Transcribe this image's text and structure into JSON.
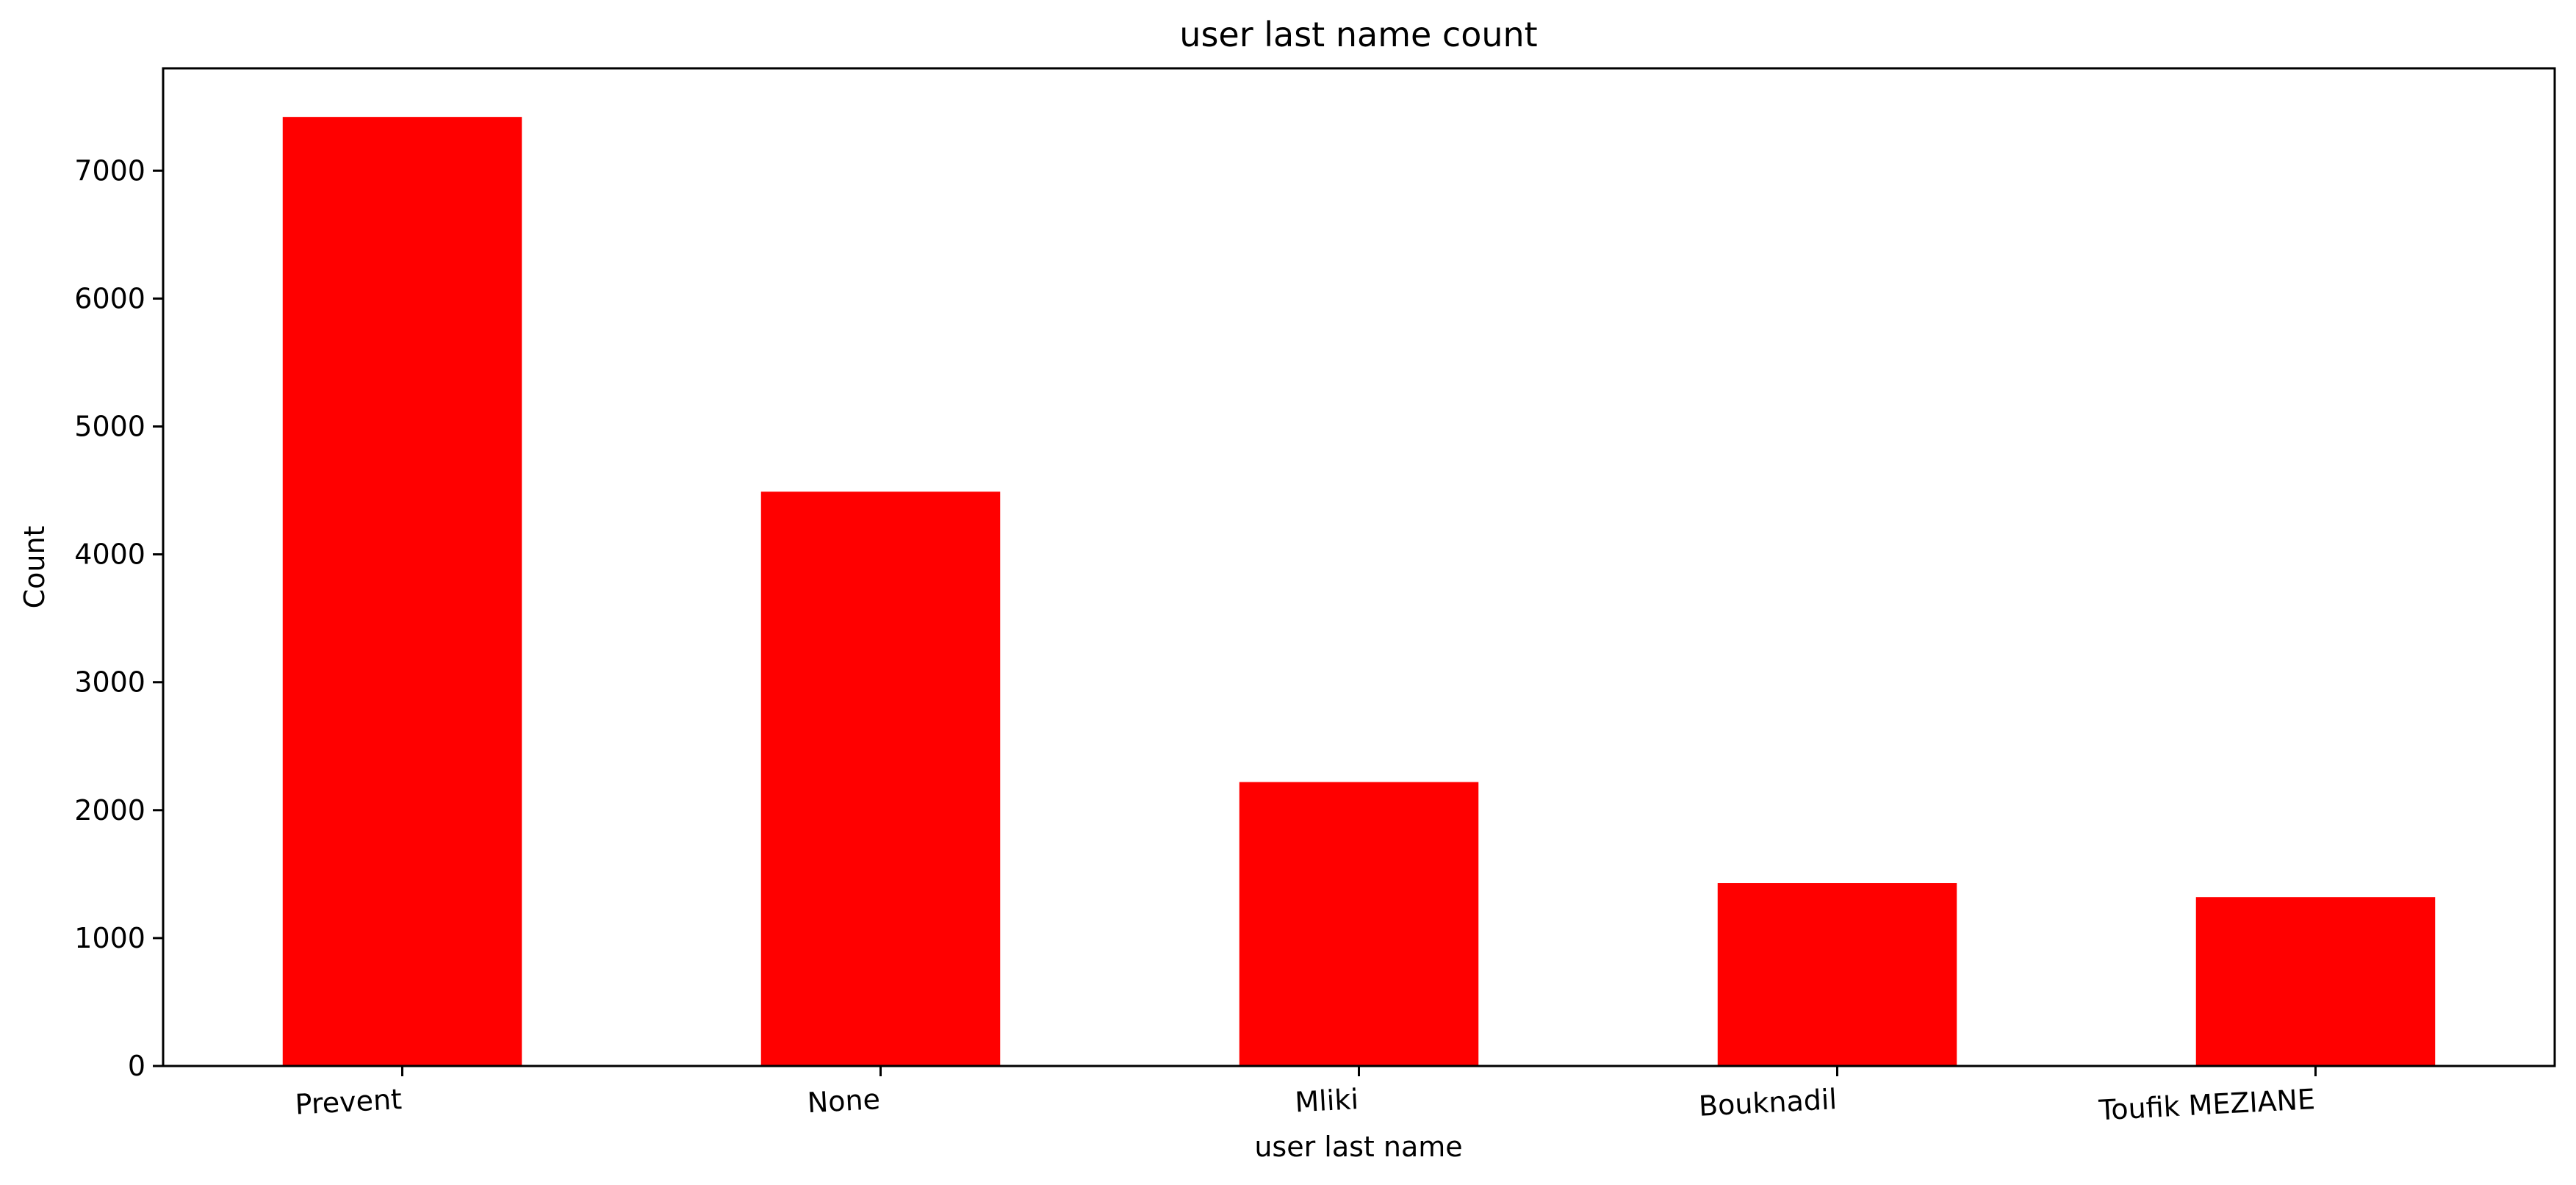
{
  "chart_data": {
    "type": "bar",
    "title": "user last name count",
    "xlabel": "user last name",
    "ylabel": "Count",
    "categories": [
      "Prevent",
      "None",
      "Mliki",
      "Bouknadil",
      "Toufik MEZIANE"
    ],
    "values": [
      7420,
      4490,
      2220,
      1430,
      1320
    ],
    "ylim": [
      0,
      7800
    ],
    "yticks": [
      0,
      1000,
      2000,
      3000,
      4000,
      5000,
      6000,
      7000
    ],
    "ytick_labels": [
      "0",
      "1000",
      "2000",
      "3000",
      "4000",
      "5000",
      "6000",
      "7000"
    ],
    "bar_color": "#ff0000",
    "grid": false,
    "legend": "none"
  }
}
